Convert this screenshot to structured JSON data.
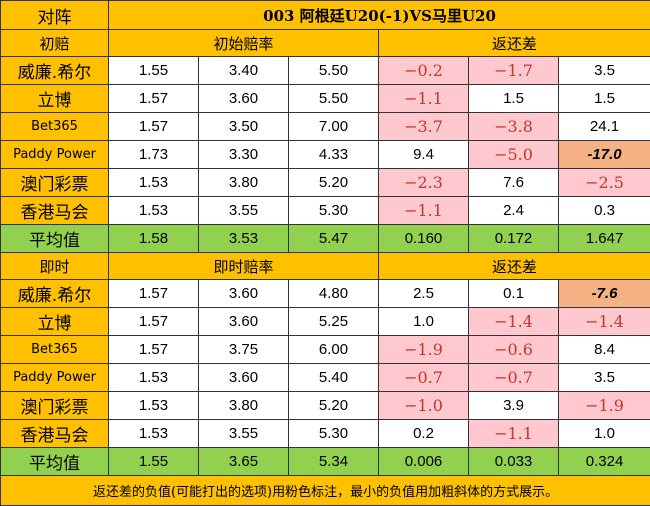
{
  "header": {
    "corner_label": "对阵",
    "match_title": "003  阿根廷U20(-1)VS马里U20"
  },
  "initial": {
    "section_label": "初赔",
    "odds_label": "初始赔率",
    "return_label": "返还差",
    "rows": [
      {
        "company": "威廉.希尔",
        "odds": [
          "1.55",
          "3.40",
          "5.50"
        ],
        "diff": [
          "−0.2",
          "−1.7",
          "3.5"
        ],
        "diff_style": [
          "neg",
          "neg",
          "plain"
        ]
      },
      {
        "company": "立博",
        "odds": [
          "1.57",
          "3.60",
          "5.50"
        ],
        "diff": [
          "−1.1",
          "1.5",
          "1.5"
        ],
        "diff_style": [
          "neg",
          "plain",
          "plain"
        ]
      },
      {
        "company": "Bet365",
        "odds": [
          "1.57",
          "3.50",
          "7.00"
        ],
        "diff": [
          "−3.7",
          "−3.8",
          "24.1"
        ],
        "diff_style": [
          "neg",
          "neg",
          "plain"
        ]
      },
      {
        "company": "Paddy Power",
        "odds": [
          "1.73",
          "3.30",
          "4.33"
        ],
        "diff": [
          "9.4",
          "−5.0",
          "-17.0"
        ],
        "diff_style": [
          "plain",
          "neg",
          "min"
        ]
      },
      {
        "company": "澳门彩票",
        "odds": [
          "1.53",
          "3.80",
          "5.20"
        ],
        "diff": [
          "−2.3",
          "7.6",
          "−2.5"
        ],
        "diff_style": [
          "neg",
          "plain",
          "neg"
        ]
      },
      {
        "company": "香港马会",
        "odds": [
          "1.53",
          "3.55",
          "5.30"
        ],
        "diff": [
          "−1.1",
          "2.4",
          "0.3"
        ],
        "diff_style": [
          "neg",
          "plain",
          "plain"
        ]
      }
    ],
    "average": {
      "label": "平均值",
      "odds": [
        "1.58",
        "3.53",
        "5.47"
      ],
      "diff": [
        "0.160",
        "0.172",
        "1.647"
      ]
    }
  },
  "live": {
    "section_label": "即时",
    "odds_label": "即时赔率",
    "return_label": "返还差",
    "rows": [
      {
        "company": "威廉.希尔",
        "odds": [
          "1.57",
          "3.60",
          "4.80"
        ],
        "diff": [
          "2.5",
          "0.1",
          "-7.6"
        ],
        "diff_style": [
          "plain",
          "plain",
          "min"
        ]
      },
      {
        "company": "立博",
        "odds": [
          "1.57",
          "3.60",
          "5.25"
        ],
        "diff": [
          "1.0",
          "−1.4",
          "−1.4"
        ],
        "diff_style": [
          "plain",
          "neg",
          "neg"
        ]
      },
      {
        "company": "Bet365",
        "odds": [
          "1.57",
          "3.75",
          "6.00"
        ],
        "diff": [
          "−1.9",
          "−0.6",
          "8.4"
        ],
        "diff_style": [
          "neg",
          "neg",
          "plain"
        ]
      },
      {
        "company": "Paddy Power",
        "odds": [
          "1.53",
          "3.60",
          "5.40"
        ],
        "diff": [
          "−0.7",
          "−0.7",
          "3.5"
        ],
        "diff_style": [
          "neg",
          "neg",
          "plain"
        ]
      },
      {
        "company": "澳门彩票",
        "odds": [
          "1.53",
          "3.80",
          "5.20"
        ],
        "diff": [
          "−1.0",
          "3.9",
          "−1.9"
        ],
        "diff_style": [
          "neg",
          "plain",
          "neg"
        ]
      },
      {
        "company": "香港马会",
        "odds": [
          "1.53",
          "3.55",
          "5.30"
        ],
        "diff": [
          "0.2",
          "−1.1",
          "1.0"
        ],
        "diff_style": [
          "plain",
          "neg",
          "plain"
        ]
      }
    ],
    "average": {
      "label": "平均值",
      "odds": [
        "1.55",
        "3.65",
        "5.34"
      ],
      "diff": [
        "0.006",
        "0.033",
        "0.324"
      ]
    }
  },
  "footer": {
    "note": "返还差的负值(可能打出的选项)用粉色标注，最小的负值用加粗斜体的方式展示。"
  },
  "colors": {
    "header_orange": "#ffc000",
    "average_green": "#92d050",
    "negative_pink": "#ffc7ce",
    "minimum_salmon": "#f4b183"
  }
}
